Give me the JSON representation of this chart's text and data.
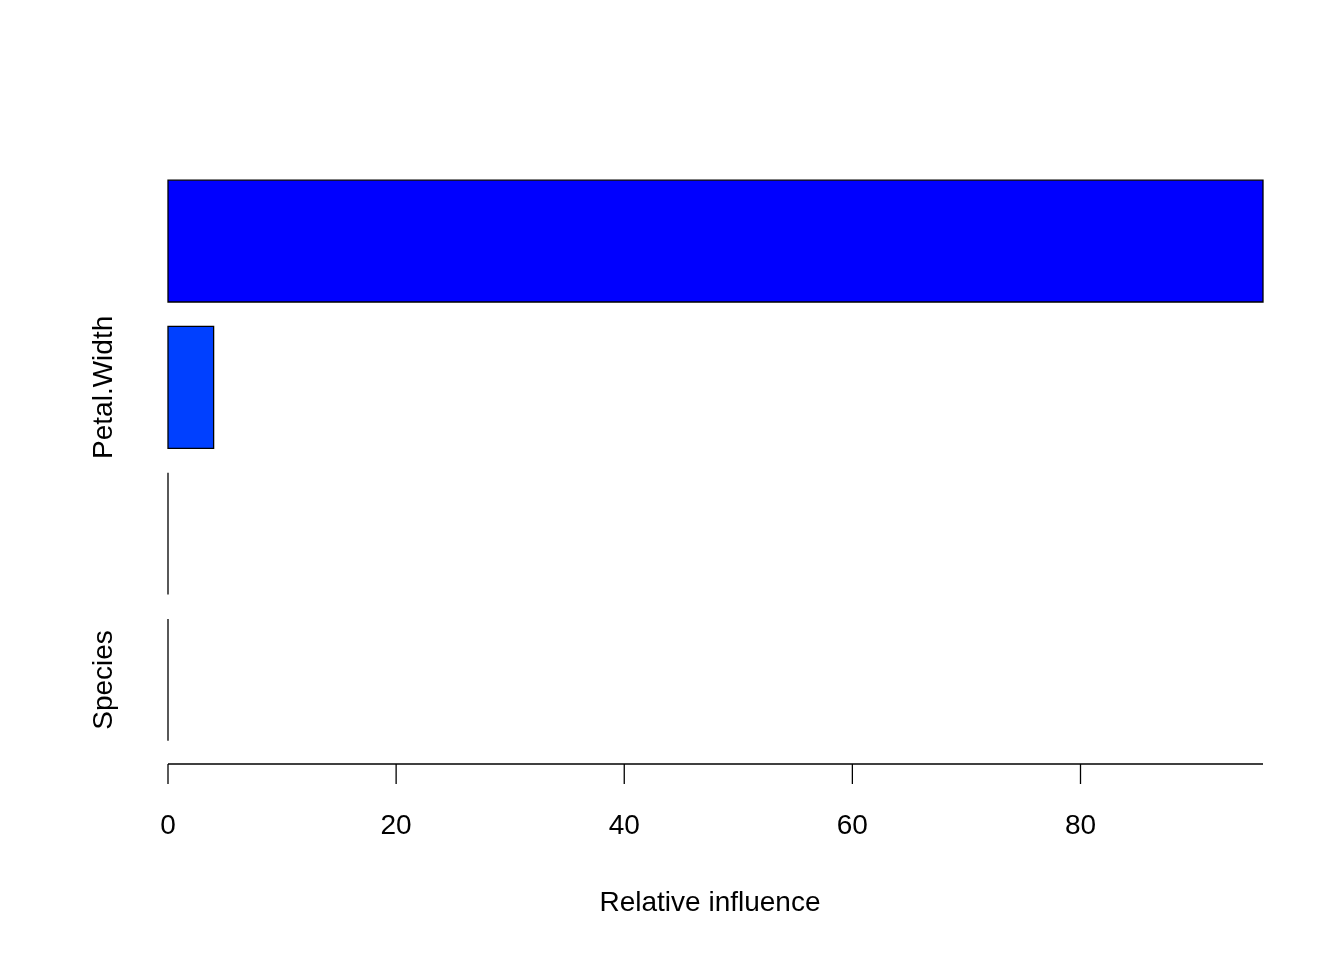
{
  "chart_data": {
    "type": "bar",
    "orientation": "horizontal",
    "xlabel": "Relative influence",
    "categories": [
      null,
      "Petal.Width",
      null,
      "Species"
    ],
    "values": [
      96,
      4,
      0,
      0
    ],
    "colors": [
      "#0000ff",
      "#0040ff",
      "#000000",
      "#000000"
    ],
    "xlim": [
      0,
      96
    ],
    "xticks": [
      0,
      20,
      40,
      60,
      80
    ]
  }
}
